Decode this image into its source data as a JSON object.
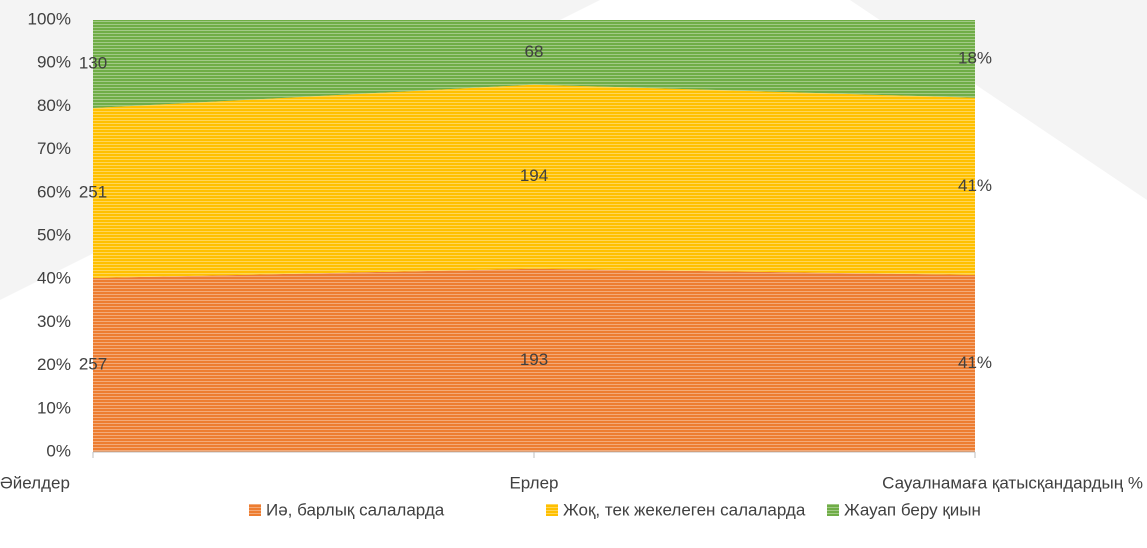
{
  "chart_data": {
    "type": "area",
    "stacked": "percent",
    "categories": [
      "Әйелдер",
      "Ерлер",
      "Сауалнамаға қатысқандардың %"
    ],
    "series": [
      {
        "name": "Иә, барлық салаларда",
        "color": "#ed7d31",
        "values": [
          257,
          193,
          41
        ],
        "value_labels": [
          "257",
          "193",
          "41%"
        ]
      },
      {
        "name": "Жоқ, тек жекелеген салаларда",
        "color": "#ffc000",
        "values": [
          251,
          194,
          41
        ],
        "value_labels": [
          "251",
          "194",
          "41%"
        ]
      },
      {
        "name": "Жауап беру қиын",
        "color": "#70ad47",
        "values": [
          130,
          68,
          18
        ],
        "value_labels": [
          "130",
          "68",
          "18%"
        ]
      }
    ],
    "ylim": [
      0,
      100
    ],
    "yticks": [
      {
        "value": 0,
        "label": "0%"
      },
      {
        "value": 10,
        "label": "10%"
      },
      {
        "value": 20,
        "label": "20%"
      },
      {
        "value": 30,
        "label": "30%"
      },
      {
        "value": 40,
        "label": "40%"
      },
      {
        "value": 50,
        "label": "50%"
      },
      {
        "value": 60,
        "label": "60%"
      },
      {
        "value": 70,
        "label": "70%"
      },
      {
        "value": 80,
        "label": "80%"
      },
      {
        "value": 90,
        "label": "90%"
      },
      {
        "value": 100,
        "label": "100%"
      }
    ],
    "legend": "bottom"
  }
}
